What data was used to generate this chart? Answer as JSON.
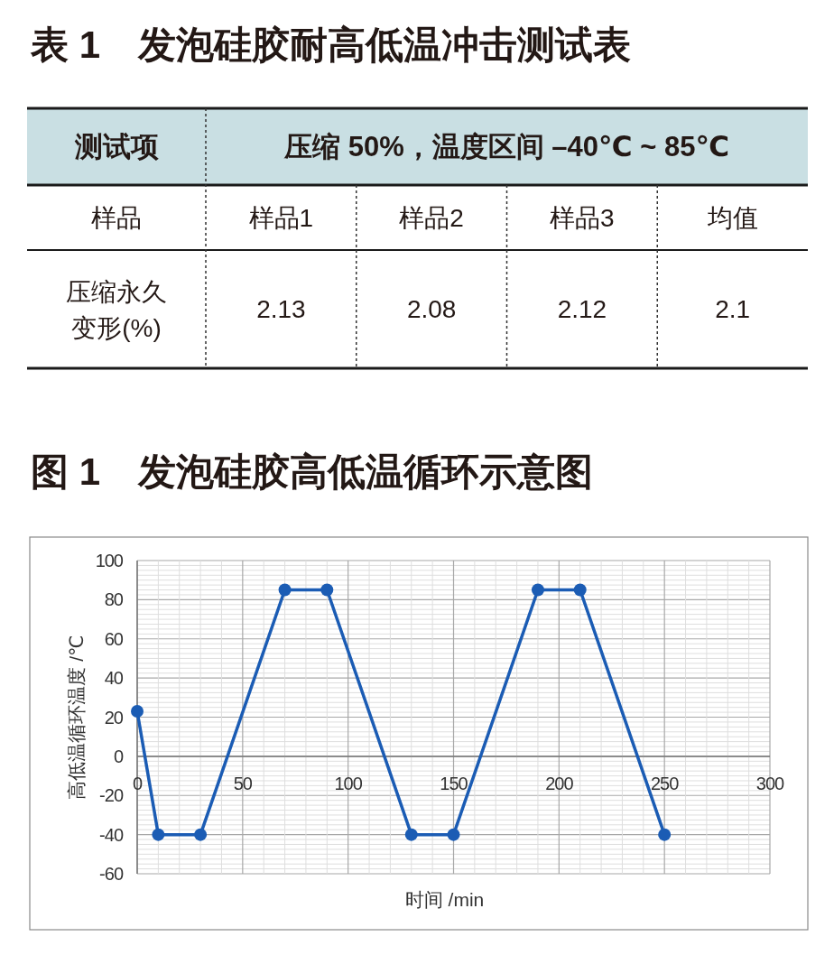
{
  "chart_data": [
    {
      "type": "other",
      "title": "表 1　发泡硅胶耐高低温冲击测试表",
      "annotations": [
        "测试项",
        "压缩 50%，温度区间 –40℃ ~ 85℃"
      ],
      "xlabel": "样品",
      "ylabel": "压缩永久变形(%)",
      "categories": [
        "样品1",
        "样品2",
        "样品3",
        "均值"
      ],
      "values": [
        2.13,
        2.08,
        2.12,
        2.1
      ],
      "data_labels": true
    },
    {
      "type": "line",
      "title": "图 1　发泡硅胶高低温循环示意图",
      "xlabel": "时间 /min",
      "ylabel": "高低温循环温度 /℃",
      "x": [
        0,
        10,
        30,
        70,
        90,
        130,
        150,
        190,
        210,
        250
      ],
      "series": [
        {
          "color": "#1b5cb4",
          "values": [
            23,
            -40,
            -40,
            85,
            85,
            -40,
            -40,
            85,
            85,
            -40
          ]
        }
      ],
      "xlim": [
        0,
        300
      ],
      "ylim": [
        -60,
        100
      ],
      "xticks": [
        0,
        {
          "value": 10,
          "label": null
        },
        {
          "value": 20,
          "label": null
        },
        {
          "value": 30,
          "label": null
        },
        {
          "value": 40,
          "label": null
        },
        50,
        {
          "value": 60,
          "label": null
        },
        {
          "value": 70,
          "label": null
        },
        {
          "value": 80,
          "label": null
        },
        {
          "value": 90,
          "label": null
        },
        100,
        {
          "value": 110,
          "label": null
        },
        {
          "value": 120,
          "label": null
        },
        {
          "value": 130,
          "label": null
        },
        {
          "value": 140,
          "label": null
        },
        150,
        {
          "value": 160,
          "label": null
        },
        {
          "value": 170,
          "label": null
        },
        {
          "value": 180,
          "label": null
        },
        {
          "value": 190,
          "label": null
        },
        200,
        {
          "value": 210,
          "label": null
        },
        {
          "value": 220,
          "label": null
        },
        {
          "value": 230,
          "label": null
        },
        {
          "value": 240,
          "label": null
        },
        250,
        {
          "value": 260,
          "label": null
        },
        {
          "value": 270,
          "label": null
        },
        {
          "value": 280,
          "label": null
        },
        {
          "value": 290,
          "label": null
        },
        300
      ],
      "yticks": [
        -60,
        {
          "value": -57.5,
          "label": null
        },
        {
          "value": -55,
          "label": null
        },
        {
          "value": -52.5,
          "label": null
        },
        {
          "value": -50,
          "label": null
        },
        {
          "value": -47.5,
          "label": null
        },
        {
          "value": -45,
          "label": null
        },
        {
          "value": -42.5,
          "label": null
        },
        -40,
        {
          "value": -37.5,
          "label": null
        },
        {
          "value": -35,
          "label": null
        },
        {
          "value": -32.5,
          "label": null
        },
        {
          "value": -30,
          "label": null
        },
        {
          "value": -27.5,
          "label": null
        },
        {
          "value": -25,
          "label": null
        },
        {
          "value": -22.5,
          "label": null
        },
        -20,
        {
          "value": -17.5,
          "label": null
        },
        {
          "value": -15,
          "label": null
        },
        {
          "value": -12.5,
          "label": null
        },
        {
          "value": -10,
          "label": null
        },
        {
          "value": -7.5,
          "label": null
        },
        {
          "value": -5,
          "label": null
        },
        {
          "value": -2.5,
          "label": null
        },
        0,
        {
          "value": 2.5,
          "label": null
        },
        {
          "value": 5,
          "label": null
        },
        {
          "value": 7.5,
          "label": null
        },
        {
          "value": 10,
          "label": null
        },
        {
          "value": 12.5,
          "label": null
        },
        {
          "value": 15,
          "label": null
        },
        {
          "value": 17.5,
          "label": null
        },
        20,
        {
          "value": 22.5,
          "label": null
        },
        {
          "value": 25,
          "label": null
        },
        {
          "value": 27.5,
          "label": null
        },
        {
          "value": 30,
          "label": null
        },
        {
          "value": 32.5,
          "label": null
        },
        {
          "value": 35,
          "label": null
        },
        {
          "value": 37.5,
          "label": null
        },
        40,
        {
          "value": 42.5,
          "label": null
        },
        {
          "value": 45,
          "label": null
        },
        {
          "value": 47.5,
          "label": null
        },
        {
          "value": 50,
          "label": null
        },
        {
          "value": 52.5,
          "label": null
        },
        {
          "value": 55,
          "label": null
        },
        {
          "value": 57.5,
          "label": null
        },
        60,
        {
          "value": 62.5,
          "label": null
        },
        {
          "value": 65,
          "label": null
        },
        {
          "value": 67.5,
          "label": null
        },
        {
          "value": 70,
          "label": null
        },
        {
          "value": 72.5,
          "label": null
        },
        {
          "value": 75,
          "label": null
        },
        {
          "value": 77.5,
          "label": null
        },
        80,
        {
          "value": 82.5,
          "label": null
        },
        {
          "value": 85,
          "label": null
        },
        {
          "value": 87.5,
          "label": null
        },
        {
          "value": 90,
          "label": null
        },
        {
          "value": 92.5,
          "label": null
        },
        {
          "value": 95,
          "label": null
        },
        {
          "value": 97.5,
          "label": null
        },
        100
      ],
      "grid": true,
      "marker": "circle"
    }
  ]
}
